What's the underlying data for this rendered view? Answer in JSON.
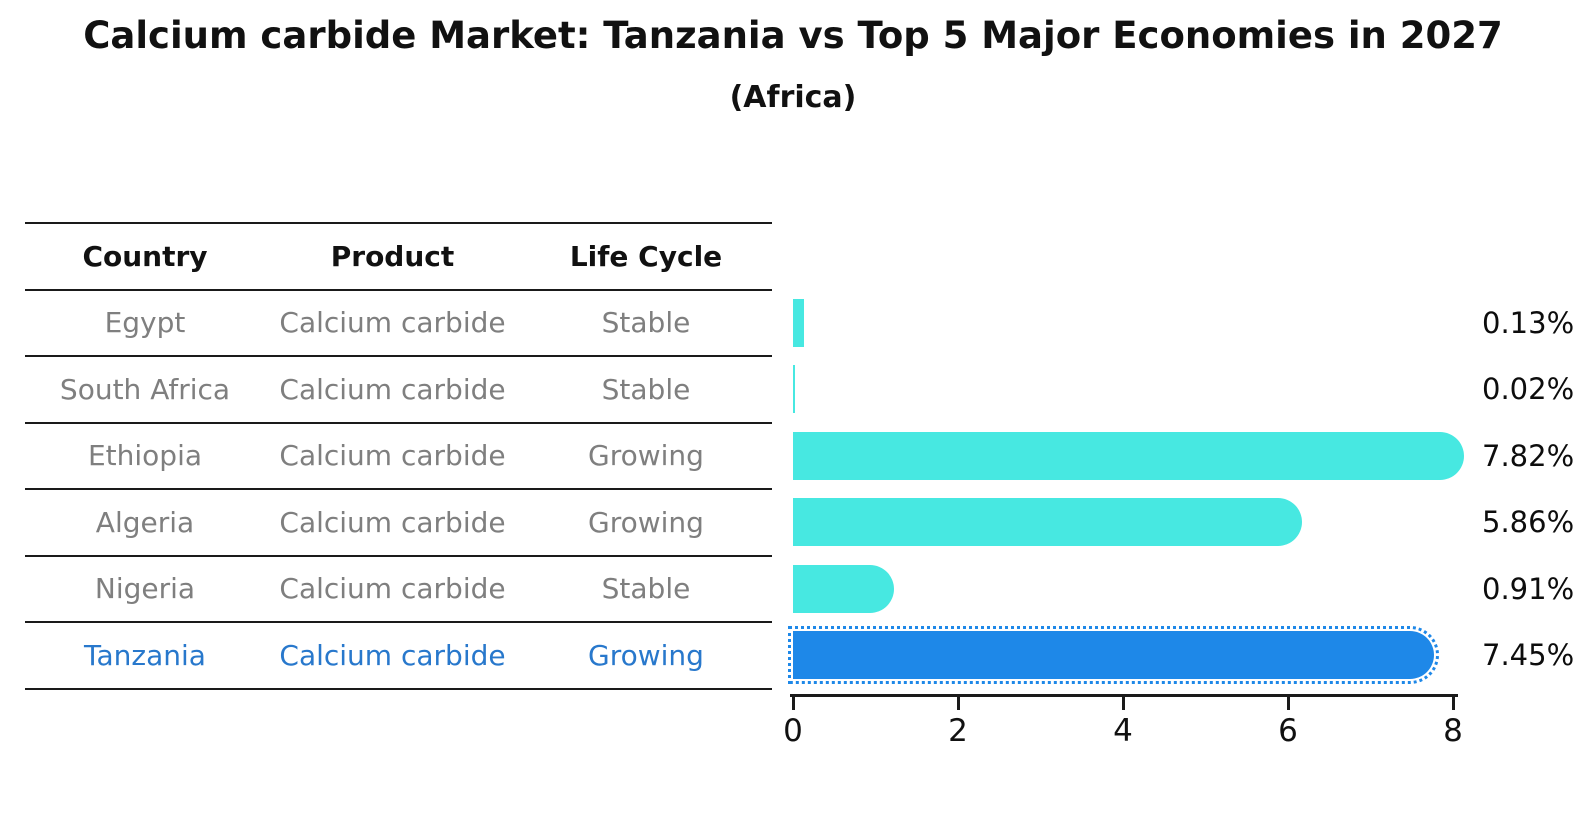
{
  "header": {
    "title": "Calcium carbide Market: Tanzania vs Top 5 Major Economies in 2027",
    "subtitle": "(Africa)"
  },
  "table": {
    "columns": [
      "Country",
      "Product",
      "Life Cycle"
    ]
  },
  "rows": [
    {
      "country": "Egypt",
      "product": "Calcium carbide",
      "life_cycle": "Stable",
      "value": 0.13,
      "label": "0.13%",
      "highlight": false
    },
    {
      "country": "South Africa",
      "product": "Calcium carbide",
      "life_cycle": "Stable",
      "value": 0.02,
      "label": "0.02%",
      "highlight": false
    },
    {
      "country": "Ethiopia",
      "product": "Calcium carbide",
      "life_cycle": "Growing",
      "value": 7.82,
      "label": "7.82%",
      "highlight": false
    },
    {
      "country": "Algeria",
      "product": "Calcium carbide",
      "life_cycle": "Growing",
      "value": 5.86,
      "label": "5.86%",
      "highlight": false
    },
    {
      "country": "Nigeria",
      "product": "Calcium carbide",
      "life_cycle": "Stable",
      "value": 0.91,
      "label": "0.91%",
      "highlight": false
    },
    {
      "country": "Tanzania",
      "product": "Calcium carbide",
      "life_cycle": "Growing",
      "value": 7.45,
      "label": "7.45%",
      "highlight": true
    }
  ],
  "chart_data": {
    "type": "bar",
    "orientation": "horizontal",
    "title": "Calcium carbide Market: Tanzania vs Top 5 Major Economies in 2027",
    "subtitle": "(Africa)",
    "categories": [
      "Egypt",
      "South Africa",
      "Ethiopia",
      "Algeria",
      "Nigeria",
      "Tanzania"
    ],
    "series": [
      {
        "name": "Market share (%)",
        "values": [
          0.13,
          0.02,
          7.82,
          5.86,
          0.91,
          7.45
        ]
      }
    ],
    "value_labels": [
      "0.13%",
      "0.02%",
      "7.82%",
      "5.86%",
      "0.91%",
      "7.45%"
    ],
    "xlabel": "",
    "ylabel": "",
    "xlim": [
      0,
      8.07
    ],
    "xticks": [
      0,
      2,
      4,
      6,
      8
    ],
    "grid": false,
    "legend": false,
    "bar_color": "#47e8e1",
    "highlight_bar_color": "#1e88e8",
    "highlight_index": 5,
    "highlight_text_color": "#2878cc",
    "row_text_color": "#7f7f7f",
    "highlight_bar_style": "dotted-outline"
  },
  "colors": {
    "bar": "#47e8e1",
    "highlight_bar": "#1e88e8",
    "highlight_text": "#2878cc",
    "row_text": "#7f7f7f",
    "line": "#1a1a1a"
  }
}
